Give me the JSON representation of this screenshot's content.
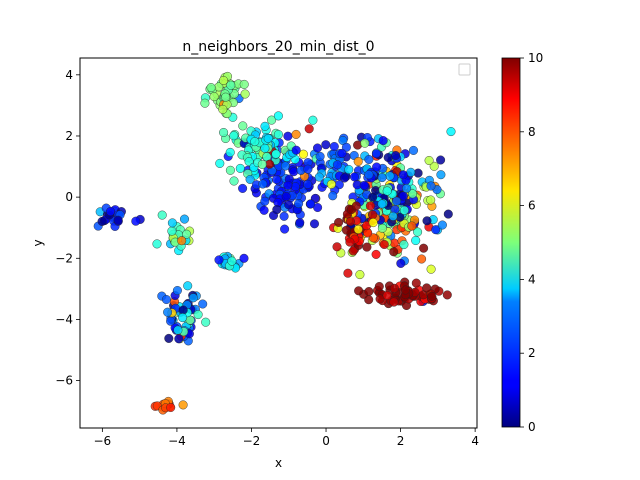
{
  "chart_data": {
    "type": "scatter",
    "title": "n_neighbors_20_min_dist_0",
    "xlabel": "x",
    "ylabel": "y",
    "xlim": [
      -6.6,
      4.05
    ],
    "ylim": [
      -7.55,
      4.55
    ],
    "xticks": [
      -6,
      -4,
      -2,
      0,
      2,
      4
    ],
    "yticks": [
      -6,
      -4,
      -2,
      0,
      2,
      4
    ],
    "colorbar": {
      "colormap": "jet",
      "range": [
        0,
        10
      ],
      "ticks": [
        0,
        2,
        4,
        6,
        8,
        10
      ]
    },
    "legend": {
      "placement": "top-right",
      "entries": []
    },
    "grid": false,
    "clusters": [
      {
        "x": -1.0,
        "y": 0.3,
        "value": 1.5
      },
      {
        "x": -1.9,
        "y": 1.6,
        "value": 4.0
      },
      {
        "x": -2.7,
        "y": 3.4,
        "value": 5.0
      },
      {
        "x": 0.3,
        "y": 1.0,
        "value": 2.0
      },
      {
        "x": 1.8,
        "y": -0.6,
        "value": 6.0
      },
      {
        "x": 1.6,
        "y": 0.5,
        "value": 2.0
      },
      {
        "x": 0.8,
        "y": -1.0,
        "value": 9.0
      },
      {
        "x": 2.2,
        "y": -3.2,
        "value": 10.0
      },
      {
        "x": -5.8,
        "y": -0.7,
        "value": 1.0
      },
      {
        "x": -4.0,
        "y": -1.3,
        "value": 4.0
      },
      {
        "x": -2.7,
        "y": -2.1,
        "value": 3.0
      },
      {
        "x": -3.8,
        "y": -3.9,
        "value": 2.0
      },
      {
        "x": -4.3,
        "y": -6.8,
        "value": 8.0
      }
    ]
  }
}
